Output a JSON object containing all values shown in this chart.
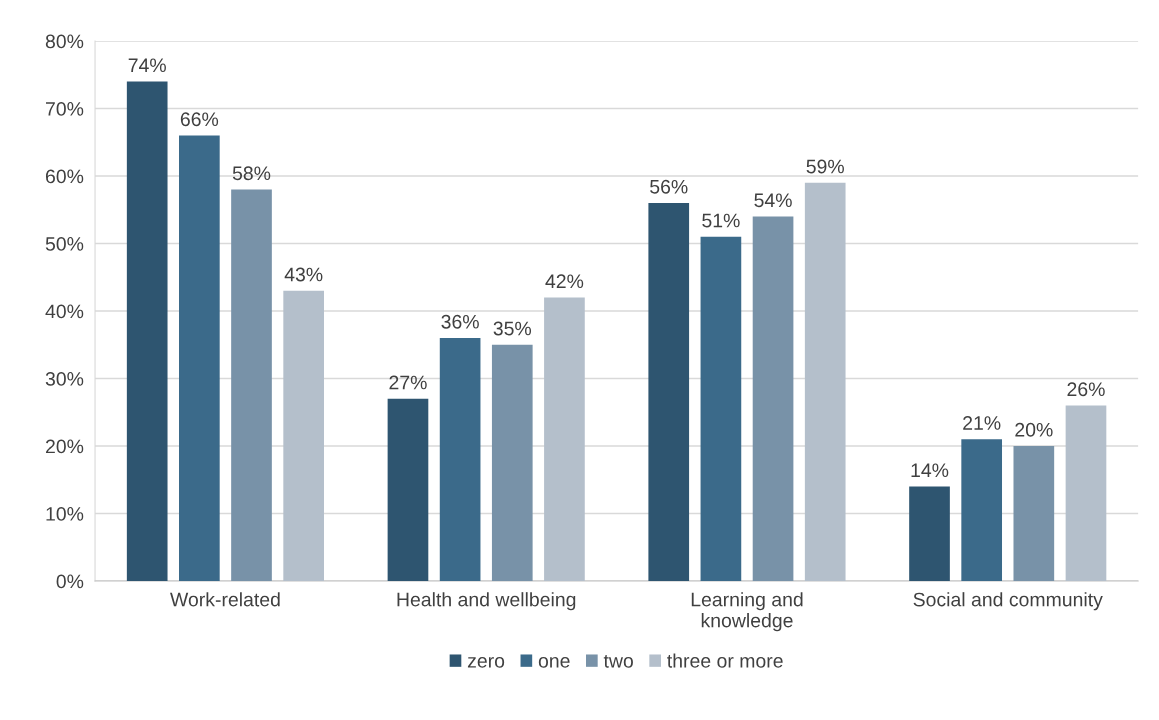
{
  "chart_data": {
    "type": "bar",
    "categories": [
      "Work-related",
      "Health and wellbeing",
      "Learning and\nknowledge",
      "Social and community"
    ],
    "series": [
      {
        "name": "zero",
        "color": "#2e5570",
        "values": [
          74,
          27,
          56,
          14
        ],
        "value_labels": [
          "74%",
          "27%",
          "56%",
          "14%"
        ]
      },
      {
        "name": "one",
        "color": "#3b6a8a",
        "values": [
          66,
          36,
          51,
          21
        ],
        "value_labels": [
          "66%",
          "36%",
          "51%",
          "21%"
        ]
      },
      {
        "name": "two",
        "color": "#7892a8",
        "values": [
          58,
          35,
          54,
          20
        ],
        "value_labels": [
          "58%",
          "35%",
          "54%",
          "20%"
        ]
      },
      {
        "name": "three or more",
        "color": "#b4bfcb",
        "values": [
          43,
          42,
          59,
          26
        ],
        "value_labels": [
          "43%",
          "42%",
          "59%",
          "26%"
        ]
      }
    ],
    "ylim": [
      0,
      80
    ],
    "yticks": [
      {
        "value": 0,
        "label": "0%"
      },
      {
        "value": 10,
        "label": "10%"
      },
      {
        "value": 20,
        "label": "20%"
      },
      {
        "value": 30,
        "label": "30%"
      },
      {
        "value": 40,
        "label": "40%"
      },
      {
        "value": 50,
        "label": "50%"
      },
      {
        "value": 60,
        "label": "60%"
      },
      {
        "value": 70,
        "label": "70%"
      },
      {
        "value": 80,
        "label": "80%"
      }
    ],
    "grid": "y",
    "legend": "bottom"
  }
}
